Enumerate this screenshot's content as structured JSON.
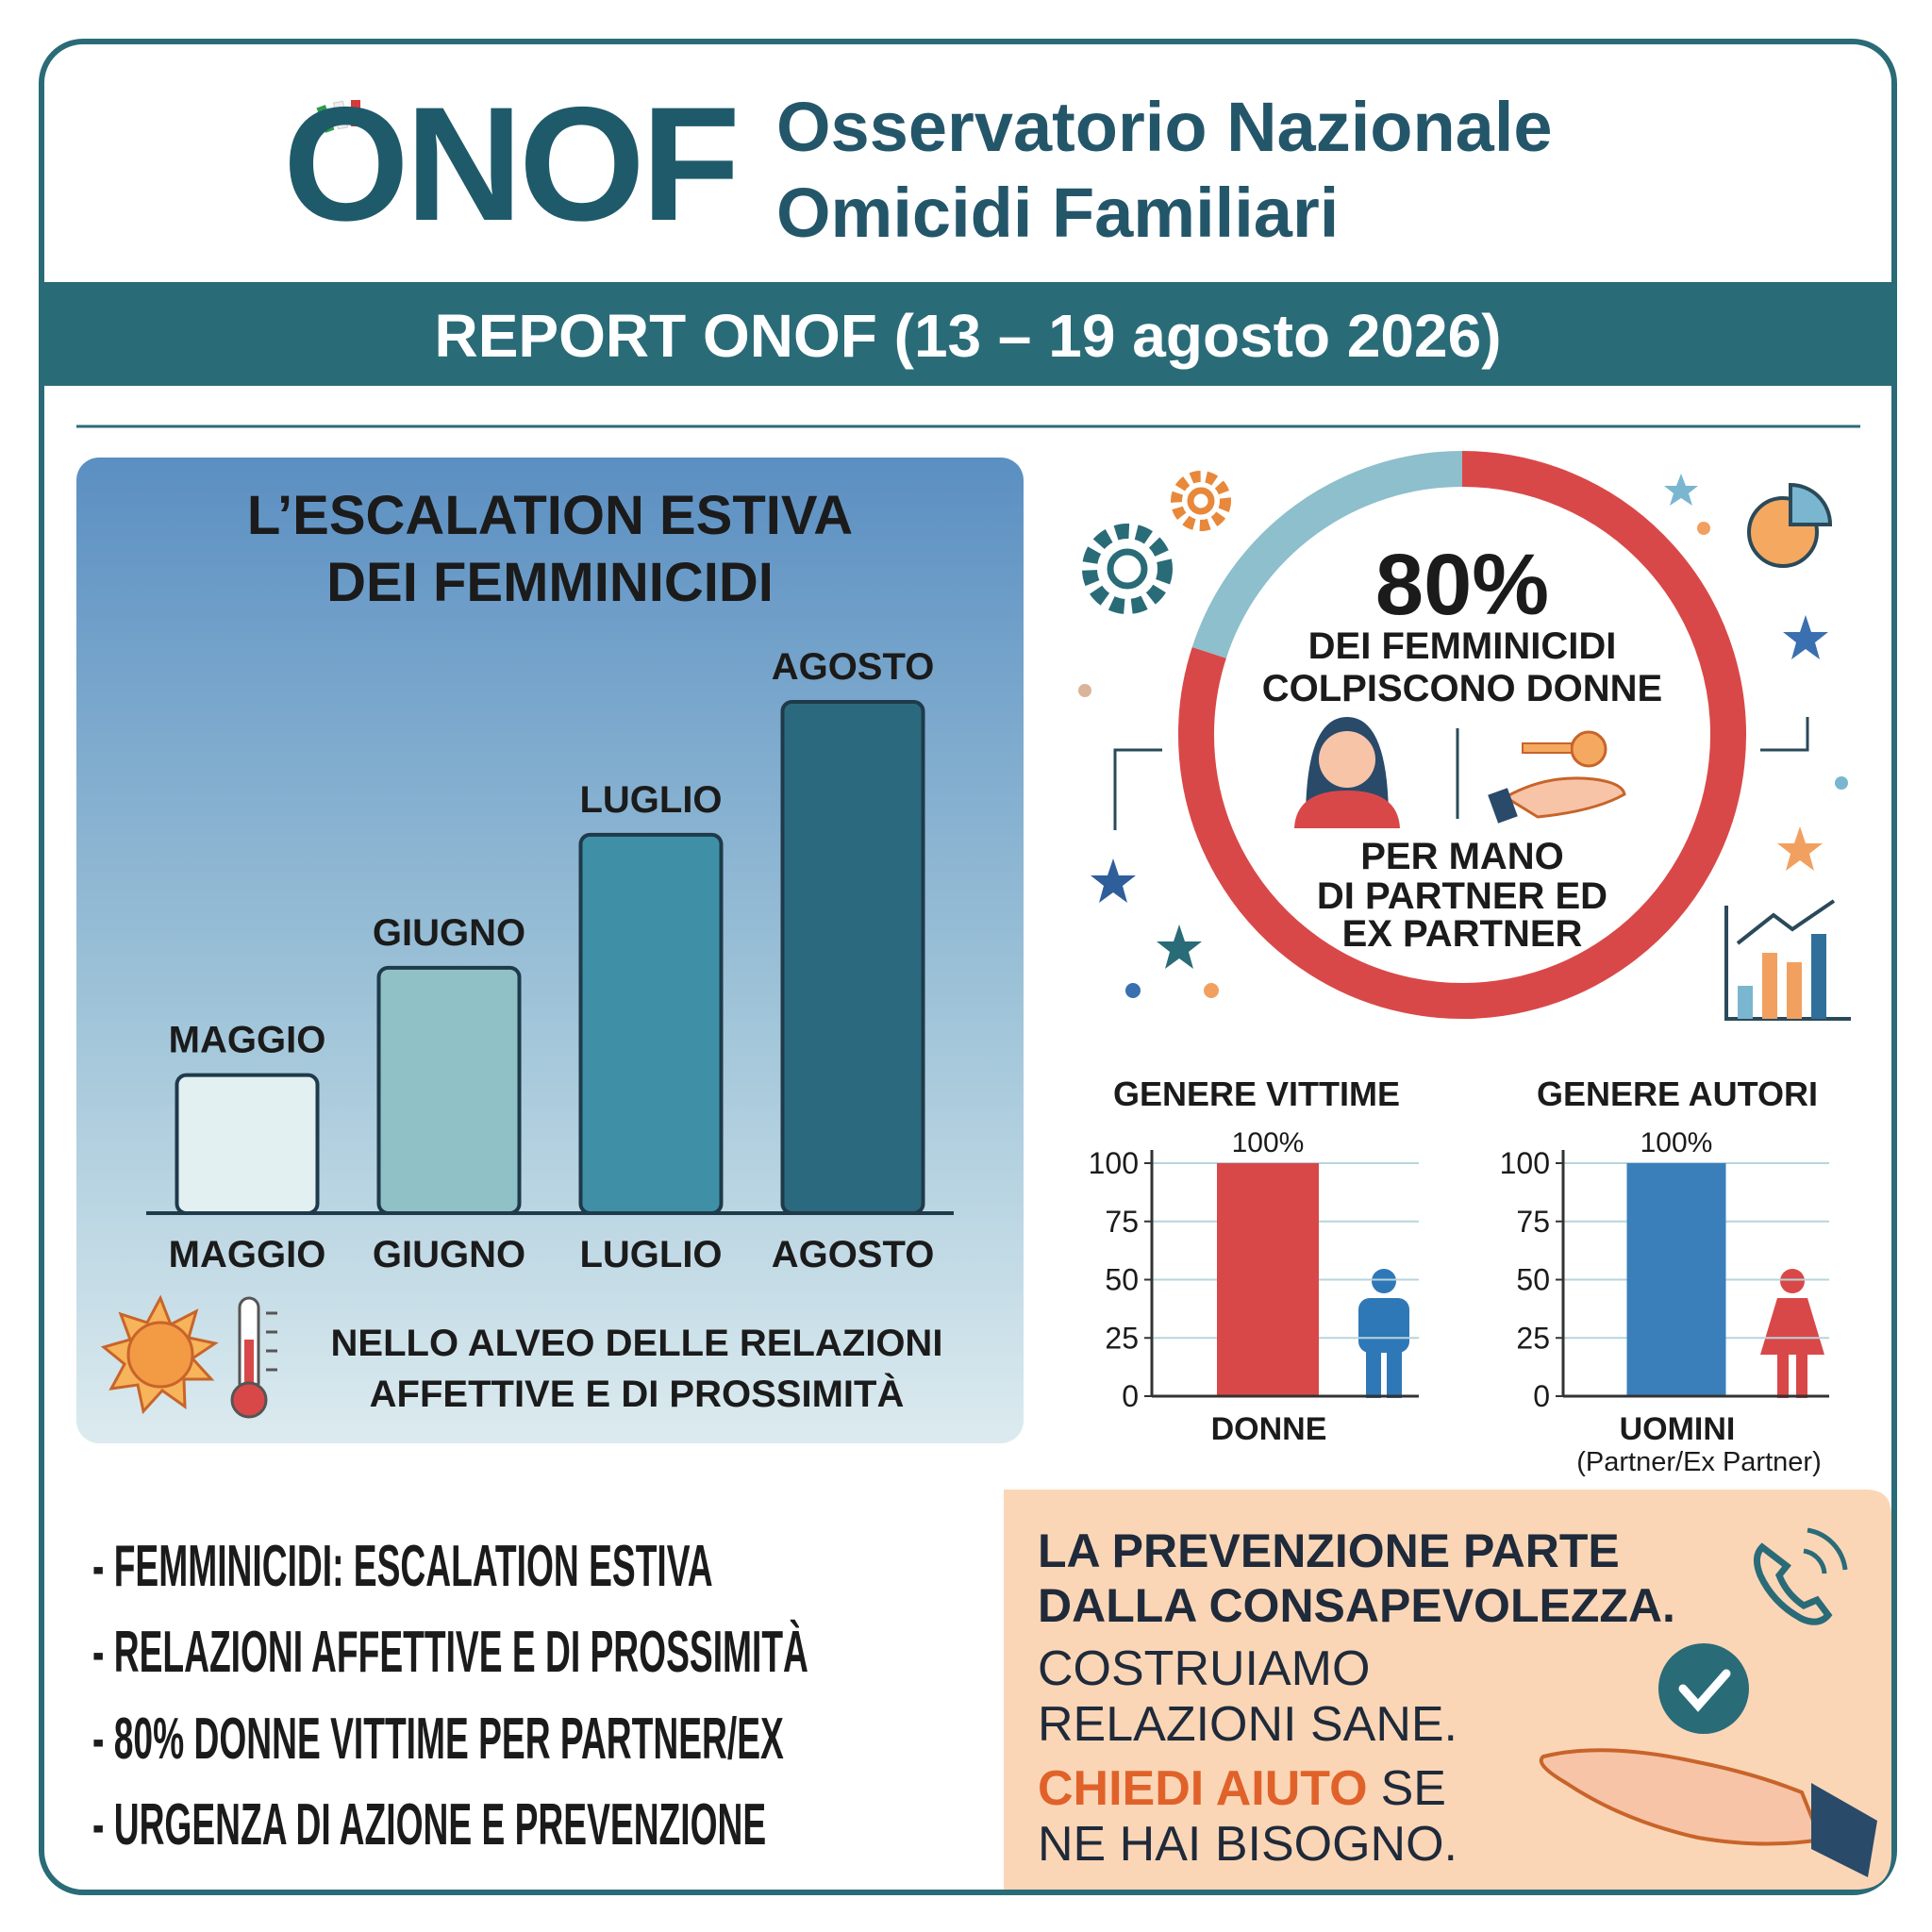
{
  "header": {
    "logo": "ONOF",
    "title": [
      "Osservatorio Nazionale",
      "Omicidi Familiari"
    ],
    "report": "REPORT ONOF (13 – 19 agosto 2026)"
  },
  "chart_data": [
    {
      "type": "bar",
      "title": [
        "L’ESCALATION ESTIVA",
        "DEI FEMMINICIDI"
      ],
      "categories": [
        "MAGGIO",
        "GIUGNO",
        "LUGLIO",
        "AGOSTO"
      ],
      "values": [
        27,
        48,
        74,
        100
      ],
      "colors": [
        "#e2f0f1",
        "#8fc1c6",
        "#3f90a6",
        "#2b6a7e"
      ],
      "ylim": [
        0,
        100
      ],
      "annotation": [
        "NELLO ALVEO DELLE RELAZIONI",
        "AFFETTIVE E DI PROSSIMITÀ"
      ]
    },
    {
      "type": "donut",
      "values": [
        80,
        20
      ],
      "value_labels": [
        "80%",
        null
      ],
      "colors": [
        "#d94848",
        "#8dbfcc"
      ],
      "text_top": [
        "DEI FEMMINICIDI",
        "COLPISCONO DONNE"
      ],
      "text_bottom": [
        "PER MANO",
        "DI PARTNER ED",
        "EX PARTNER"
      ]
    },
    {
      "type": "bar",
      "title": "GENERE VITTIME",
      "categories": [
        "DONNE"
      ],
      "values": [
        100
      ],
      "value_labels": [
        "100%"
      ],
      "color": "#d94848",
      "ylim": [
        0,
        100
      ],
      "yticks": [
        0,
        25,
        50,
        75,
        100
      ],
      "grid": true
    },
    {
      "type": "bar",
      "title": "GENERE AUTORI",
      "categories": [
        "UOMINI"
      ],
      "subtitle": "(Partner/Ex Partner)",
      "values": [
        100
      ],
      "value_labels": [
        "100%"
      ],
      "color": "#3a7fba",
      "ylim": [
        0,
        100
      ],
      "yticks": [
        0,
        25,
        50,
        75,
        100
      ],
      "grid": true
    }
  ],
  "bullets": [
    "- FEMMINICIDI: ESCALATION ESTIVA",
    "- RELAZIONI AFFETTIVE E DI PROSSIMITÀ",
    "- 80% DONNE VITTIME PER PARTNER/EX",
    "- URGENZA DI AZIONE E PREVENZIONE"
  ],
  "cta": {
    "heading": [
      "LA PREVENZIONE PARTE",
      "DALLA CONSAPEVOLEZZA."
    ],
    "body": [
      "COSTRUIAMO",
      "RELAZIONI SANE."
    ],
    "highlight": "CHIEDI AIUTO",
    "highlight_rest": "SE",
    "last": "NE HAI BISOGNO."
  }
}
